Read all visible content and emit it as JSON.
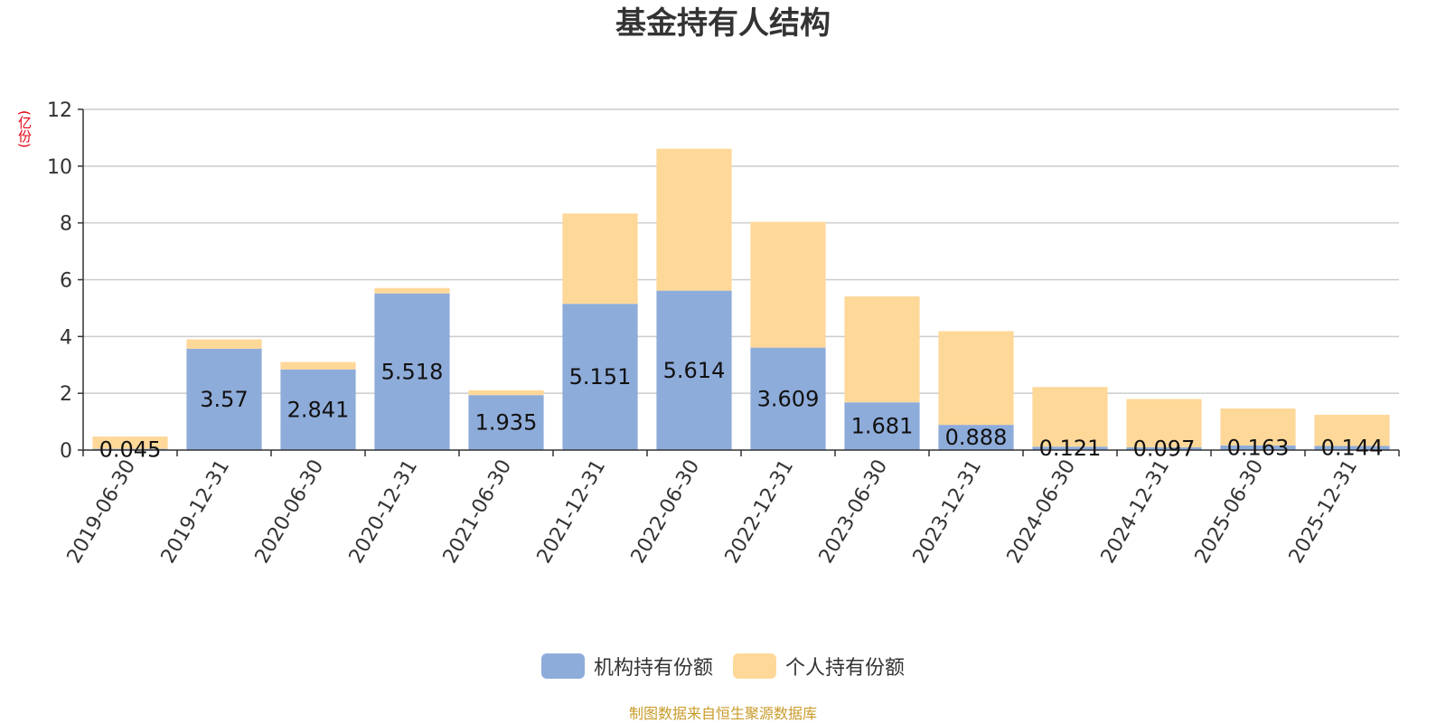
{
  "chart_data": {
    "type": "bar",
    "stacked": true,
    "title": "基金持有人结构",
    "ylabel": "(亿份)",
    "ylim": [
      0,
      12
    ],
    "yticks": [
      "0",
      "2",
      "4",
      "6",
      "8",
      "10",
      "12"
    ],
    "grid": true,
    "legend_position": "bottom",
    "categories": [
      "2019-06-30",
      "2019-12-31",
      "2020-06-30",
      "2020-12-31",
      "2021-06-30",
      "2021-12-31",
      "2022-06-30",
      "2022-12-31",
      "2023-06-30",
      "2023-12-31",
      "2024-06-30",
      "2024-12-31",
      "2025-06-30",
      "2025-12-31"
    ],
    "series": [
      {
        "name": "机构持有份额",
        "color": "#8eacda",
        "values": [
          0.045,
          3.57,
          2.841,
          5.518,
          1.935,
          5.151,
          5.614,
          3.609,
          1.681,
          0.888,
          0.121,
          0.097,
          0.163,
          0.144
        ],
        "labels": [
          "0.045",
          "3.57",
          "2.841",
          "5.518",
          "1.935",
          "5.151",
          "5.614",
          "3.609",
          "1.681",
          "0.888",
          "0.121",
          "0.097",
          "0.163",
          "0.144"
        ]
      },
      {
        "name": "个人持有份额",
        "color": "#fed899",
        "values": [
          0.43,
          0.33,
          0.26,
          0.19,
          0.17,
          3.18,
          5.0,
          4.43,
          3.73,
          3.3,
          2.1,
          1.7,
          1.3,
          1.1
        ]
      }
    ]
  },
  "source_note": "制图数据来自恒生聚源数据库"
}
